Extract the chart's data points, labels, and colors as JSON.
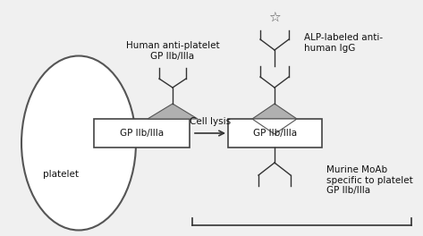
{
  "bg_color": "#f0f0f0",
  "box_color": "white",
  "box_edge_color": "#444444",
  "ellipse_color": "white",
  "ellipse_edge_color": "#555555",
  "triangle_color": "#b0b0b0",
  "triangle_edge_color": "#555555",
  "arrow_color": "#333333",
  "text_color": "#111111",
  "label_platelet": "platelet",
  "label_gp_left": "GP IIb/IIIa",
  "label_gp_right": "GP IIb/IIIa",
  "label_human_ab": "Human anti-platelet\nGP IIb/IIIa",
  "label_alp": "ALP-labeled anti-\nhuman IgG",
  "label_cell_lysis": "Cell lysis",
  "label_murine": "Murine MoAb\nspecific to platelet\nGP IIb/IIIa",
  "figsize": [
    4.73,
    2.64
  ],
  "dpi": 100
}
